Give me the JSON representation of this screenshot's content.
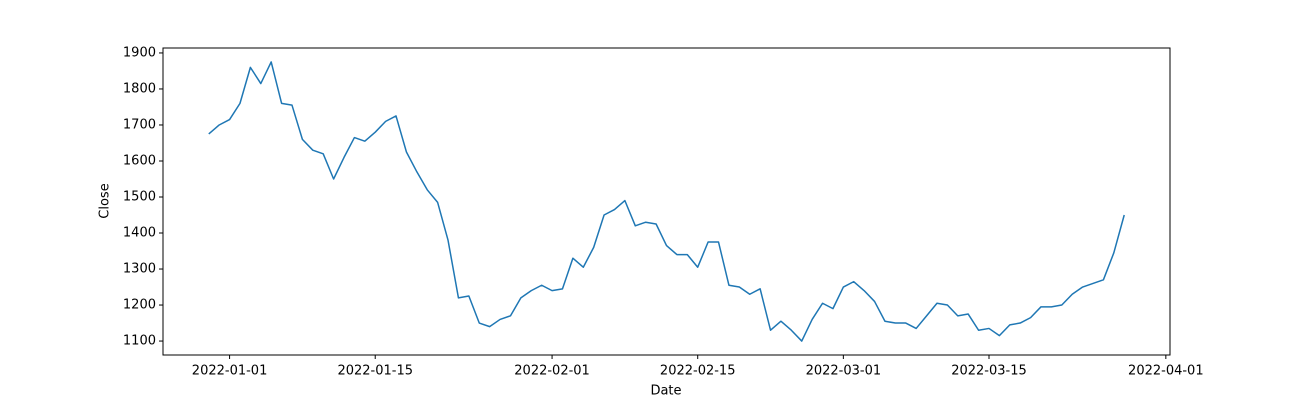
{
  "chart_data": {
    "type": "line",
    "x_label": "Date",
    "y_label": "Close",
    "color": "#1f77b4",
    "x": [
      "2021-12-30",
      "2021-12-31",
      "2022-01-01",
      "2022-01-02",
      "2022-01-03",
      "2022-01-04",
      "2022-01-05",
      "2022-01-06",
      "2022-01-07",
      "2022-01-08",
      "2022-01-09",
      "2022-01-10",
      "2022-01-11",
      "2022-01-12",
      "2022-01-13",
      "2022-01-14",
      "2022-01-15",
      "2022-01-16",
      "2022-01-17",
      "2022-01-18",
      "2022-01-19",
      "2022-01-20",
      "2022-01-21",
      "2022-01-22",
      "2022-01-23",
      "2022-01-24",
      "2022-01-25",
      "2022-01-26",
      "2022-01-27",
      "2022-01-28",
      "2022-01-29",
      "2022-01-30",
      "2022-01-31",
      "2022-02-01",
      "2022-02-02",
      "2022-02-03",
      "2022-02-04",
      "2022-02-05",
      "2022-02-06",
      "2022-02-07",
      "2022-02-08",
      "2022-02-09",
      "2022-02-10",
      "2022-02-11",
      "2022-02-12",
      "2022-02-13",
      "2022-02-14",
      "2022-02-15",
      "2022-02-16",
      "2022-02-17",
      "2022-02-18",
      "2022-02-19",
      "2022-02-20",
      "2022-02-21",
      "2022-02-22",
      "2022-02-23",
      "2022-02-24",
      "2022-02-25",
      "2022-02-26",
      "2022-02-27",
      "2022-02-28",
      "2022-03-01",
      "2022-03-02",
      "2022-03-03",
      "2022-03-04",
      "2022-03-05",
      "2022-03-06",
      "2022-03-07",
      "2022-03-08",
      "2022-03-09",
      "2022-03-10",
      "2022-03-11",
      "2022-03-12",
      "2022-03-13",
      "2022-03-14",
      "2022-03-15",
      "2022-03-16",
      "2022-03-17",
      "2022-03-18",
      "2022-03-19",
      "2022-03-20",
      "2022-03-21",
      "2022-03-22",
      "2022-03-23",
      "2022-03-24",
      "2022-03-25",
      "2022-03-26",
      "2022-03-27",
      "2022-03-28"
    ],
    "values": [
      1675,
      1700,
      1715,
      1760,
      1860,
      1815,
      1875,
      1760,
      1755,
      1660,
      1630,
      1620,
      1550,
      1610,
      1665,
      1655,
      1680,
      1710,
      1725,
      1625,
      1570,
      1520,
      1485,
      1380,
      1220,
      1225,
      1150,
      1140,
      1160,
      1170,
      1220,
      1240,
      1255,
      1240,
      1245,
      1330,
      1305,
      1360,
      1450,
      1465,
      1490,
      1420,
      1430,
      1425,
      1365,
      1340,
      1340,
      1305,
      1375,
      1375,
      1255,
      1250,
      1230,
      1245,
      1130,
      1155,
      1130,
      1100,
      1160,
      1205,
      1190,
      1250,
      1265,
      1240,
      1210,
      1155,
      1150,
      1150,
      1135,
      1170,
      1205,
      1200,
      1170,
      1175,
      1130,
      1135,
      1115,
      1145,
      1150,
      1165,
      1195,
      1195,
      1200,
      1230,
      1250,
      1260,
      1270,
      1345,
      1450
    ],
    "xlim": [
      "2021-12-25T14:24:00Z",
      "2022-04-01T09:36:00Z"
    ],
    "xticks": [
      "2022-01-01",
      "2022-01-15",
      "2022-02-01",
      "2022-02-15",
      "2022-03-01",
      "2022-03-15",
      "2022-04-01"
    ],
    "ylim": [
      1061.25,
      1913.75
    ],
    "yticks": [
      1100,
      1200,
      1300,
      1400,
      1500,
      1600,
      1700,
      1800,
      1900
    ]
  }
}
